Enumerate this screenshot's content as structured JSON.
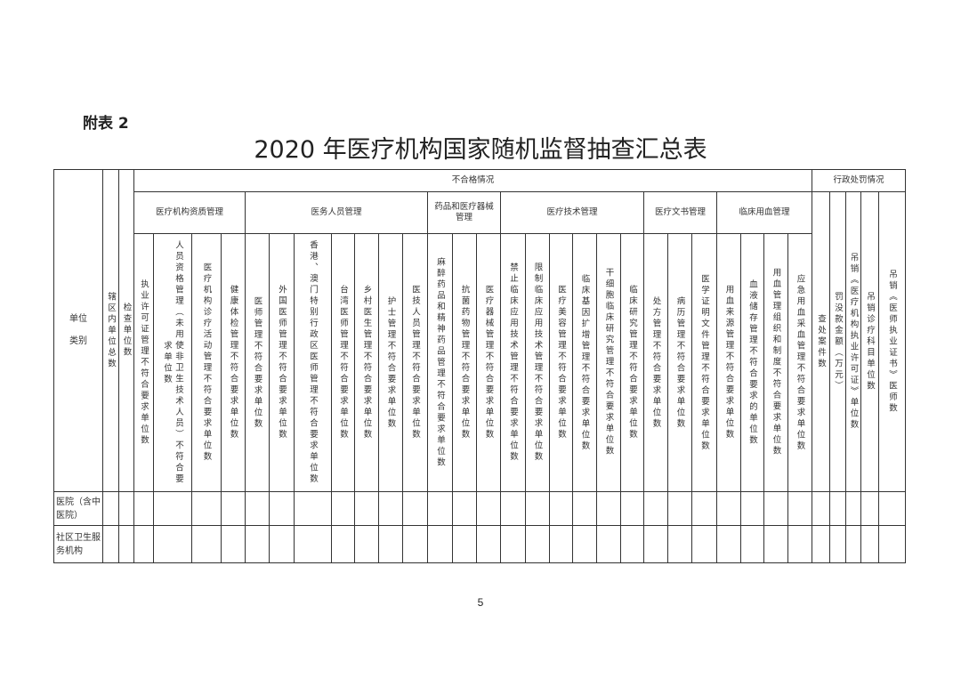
{
  "appendix_label": "附表 2",
  "title": "2020 年医疗机构国家随机监督抽查汇总表",
  "header": {
    "unit_type": "单位\n\n类别",
    "total_units": "辖区内单位总数",
    "inspected_units": "检查单位数",
    "nonconforming": "不合格情况",
    "penalty": "行政处罚情况",
    "groups": [
      {
        "label": "医疗机构资质管理",
        "columns": [
          "执业许可证管理不符合要求单位数",
          "人员资格管理（未用使非卫生技术人员）不符合要求单位数",
          "医疗机构诊疗活动管理不符合要求单位数",
          "健康体检管理不符合要求单位数"
        ]
      },
      {
        "label": "医务人员管理",
        "columns": [
          "医师管理不符合要求单位数",
          "外国医师管理不符合要求单位数",
          "香港、澳门特别行政区医师管理不符合要求单位数",
          "台湾医师管理不符合要求单位数",
          "乡村医生管理不符合要求单位数",
          "护士管理不符合要求单位数",
          "医技人员管理不符合要求单位数"
        ]
      },
      {
        "label": "药品和医疗器械管理",
        "columns": [
          "麻醉药品和精神药品管理不符合要求单位数",
          "抗菌药物管理不符合要求单位数",
          "医疗器械管理不符合要求单位数"
        ]
      },
      {
        "label": "医疗技术管理",
        "columns": [
          "禁止临床应用技术管理不符合要求单位数",
          "限制临床应用技术管理不符合要求单位数",
          "医疗美容管理不符合要求单位数",
          "临床基因扩增管理不符合要求单位数",
          "干细胞临床研究管理不符合要求单位数",
          "临床研究管理不符合要求单位数"
        ]
      },
      {
        "label": "医疗文书管理",
        "columns": [
          "处方管理不符合要求单位数",
          "病历管理不符合要求单位数",
          "医学证明文件管理不符合要求单位数"
        ]
      },
      {
        "label": "临床用血管理",
        "columns": [
          "用血来源管理不符合要求单位数",
          "血液储存管理不符合要求的单位数",
          "用血管理组织和制度不符合要求单位数",
          "应急用血采血管理不符合要求单位数"
        ]
      }
    ],
    "penalty_columns": [
      "查处案件数",
      "罚没款金额（万元）",
      "吊销《医疗机构执业许可证》单位数",
      "吊销诊疗科目单位数",
      "吊销《医师执业证书》医师数"
    ]
  },
  "rows": [
    {
      "label": "医院（含中医院）"
    },
    {
      "label": "社区卫生服务机构"
    }
  ],
  "page_number": "5"
}
